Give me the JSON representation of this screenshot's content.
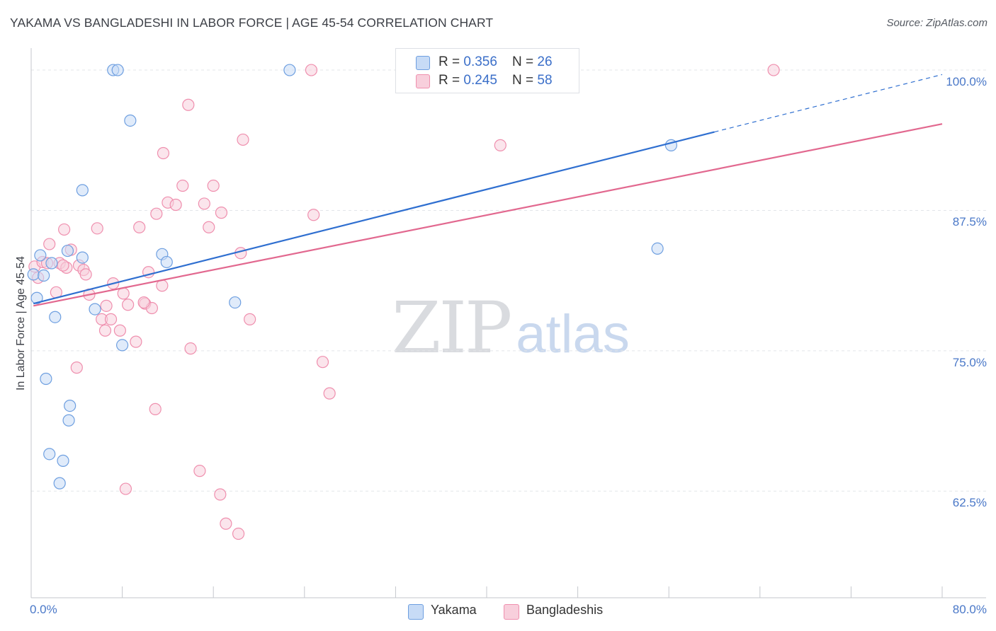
{
  "title": "YAKAMA VS BANGLADESHI IN LABOR FORCE | AGE 45-54 CORRELATION CHART",
  "source": "Source: ZipAtlas.com",
  "watermark": {
    "part1": "ZIP",
    "part2": "atlas"
  },
  "colors": {
    "yakama": "#6e9fe0",
    "yakama_fill": "#c7dbf6",
    "bangladeshi": "#ef8fae",
    "bangladeshi_fill": "#f8cfdc",
    "yakama_line": "#2f6fd0",
    "bangladeshi_line": "#e2688f",
    "tick_text": "#4a78c8"
  },
  "legend": {
    "rows": [
      {
        "series": "yakama",
        "r_label": "R = ",
        "r_value": "0.356",
        "n_label": "N = ",
        "n_value": "26"
      },
      {
        "series": "bangladeshi",
        "r_label": "R = ",
        "r_value": "0.245",
        "n_label": "N = ",
        "n_value": "58"
      }
    ]
  },
  "bottom_legend": [
    "Yakama",
    "Bangladeshis"
  ],
  "chart_data": {
    "type": "scatter",
    "title": "YAKAMA VS BANGLADESHI IN LABOR FORCE | AGE 45-54 CORRELATION CHART",
    "xlabel": "",
    "ylabel": "In Labor Force | Age 45-54",
    "xlim": [
      0,
      80
    ],
    "ylim": [
      53,
      101.2
    ],
    "x_tick_labels": [
      "0.0%",
      "80.0%"
    ],
    "y_ticks": [
      62.5,
      75.0,
      87.5,
      100.0
    ],
    "y_tick_labels": [
      "62.5%",
      "75.0%",
      "87.5%",
      "100.0%"
    ],
    "grid": "horizontal dashed",
    "legend_position": "top-center",
    "series": [
      {
        "name": "Yakama",
        "points": [
          [
            0.2,
            81.8
          ],
          [
            0.5,
            79.7
          ],
          [
            0.8,
            83.5
          ],
          [
            1.1,
            81.7
          ],
          [
            1.3,
            72.5
          ],
          [
            1.6,
            65.8
          ],
          [
            1.8,
            82.8
          ],
          [
            2.1,
            78.0
          ],
          [
            2.5,
            63.2
          ],
          [
            2.8,
            65.2
          ],
          [
            3.2,
            83.9
          ],
          [
            3.4,
            70.1
          ],
          [
            3.3,
            68.8
          ],
          [
            4.5,
            89.3
          ],
          [
            4.5,
            83.3
          ],
          [
            5.6,
            78.7
          ],
          [
            7.2,
            100.0
          ],
          [
            7.6,
            100.0
          ],
          [
            8.0,
            75.5
          ],
          [
            8.7,
            95.5
          ],
          [
            11.5,
            83.6
          ],
          [
            11.9,
            82.9
          ],
          [
            17.9,
            79.3
          ],
          [
            22.7,
            100.0
          ],
          [
            55.0,
            84.1
          ],
          [
            56.2,
            93.3
          ]
        ],
        "trend": {
          "x": [
            0.2,
            80
          ],
          "y": [
            79.2,
            99.6
          ],
          "solid_until_x": 60
        }
      },
      {
        "name": "Bangladeshis",
        "points": [
          [
            0.3,
            82.5
          ],
          [
            0.6,
            81.5
          ],
          [
            1.0,
            82.9
          ],
          [
            1.6,
            84.5
          ],
          [
            2.2,
            80.2
          ],
          [
            2.5,
            82.8
          ],
          [
            2.9,
            85.8
          ],
          [
            3.1,
            82.4
          ],
          [
            3.5,
            84.0
          ],
          [
            4.0,
            73.5
          ],
          [
            4.2,
            82.6
          ],
          [
            4.6,
            82.2
          ],
          [
            4.8,
            81.8
          ],
          [
            5.1,
            80.0
          ],
          [
            5.8,
            85.9
          ],
          [
            6.2,
            77.8
          ],
          [
            6.5,
            76.8
          ],
          [
            7.0,
            77.8
          ],
          [
            7.2,
            81.0
          ],
          [
            7.8,
            76.8
          ],
          [
            8.1,
            80.1
          ],
          [
            8.5,
            79.1
          ],
          [
            9.2,
            75.8
          ],
          [
            9.5,
            86.0
          ],
          [
            10.0,
            79.2
          ],
          [
            10.3,
            82.0
          ],
          [
            10.6,
            78.8
          ],
          [
            10.9,
            69.8
          ],
          [
            11.0,
            87.2
          ],
          [
            11.5,
            80.8
          ],
          [
            11.6,
            92.6
          ],
          [
            12.0,
            88.2
          ],
          [
            12.7,
            88.0
          ],
          [
            13.3,
            89.7
          ],
          [
            13.8,
            96.9
          ],
          [
            14.0,
            75.2
          ],
          [
            14.8,
            64.3
          ],
          [
            15.2,
            88.1
          ],
          [
            15.6,
            86.0
          ],
          [
            16.0,
            89.7
          ],
          [
            16.6,
            62.2
          ],
          [
            16.7,
            87.3
          ],
          [
            17.1,
            59.6
          ],
          [
            18.2,
            58.7
          ],
          [
            18.4,
            83.7
          ],
          [
            18.6,
            93.8
          ],
          [
            19.2,
            77.8
          ],
          [
            24.6,
            100.0
          ],
          [
            24.8,
            87.1
          ],
          [
            25.6,
            74.0
          ],
          [
            26.2,
            71.2
          ],
          [
            41.2,
            93.3
          ],
          [
            65.2,
            100.0
          ],
          [
            8.3,
            62.7
          ],
          [
            6.6,
            79.0
          ],
          [
            9.9,
            79.3
          ],
          [
            2.8,
            82.6
          ],
          [
            1.4,
            82.8
          ]
        ],
        "trend": {
          "x": [
            0.2,
            80
          ],
          "y": [
            79.0,
            95.2
          ]
        }
      }
    ]
  }
}
